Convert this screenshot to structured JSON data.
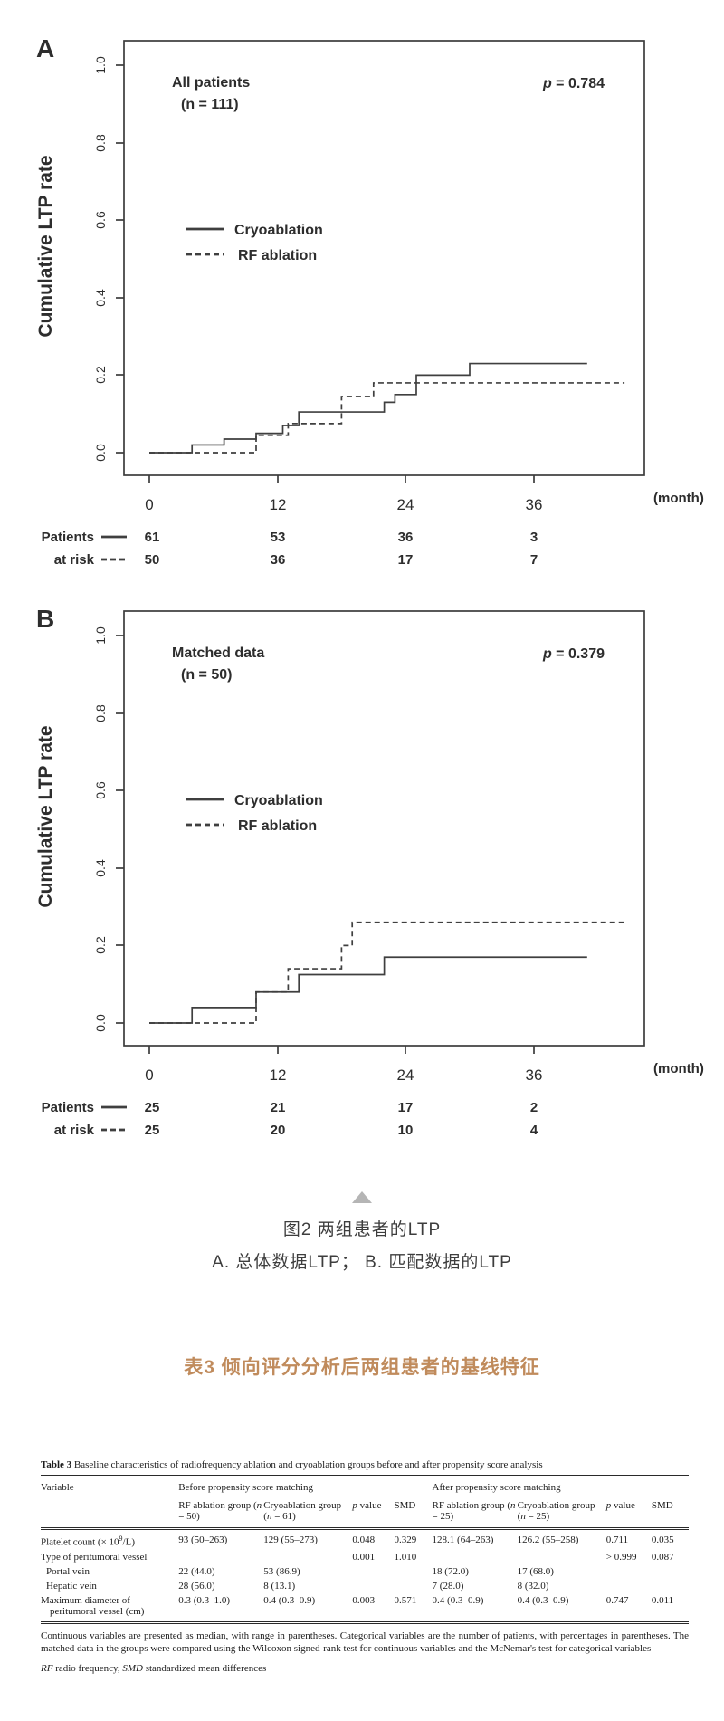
{
  "figure2": {
    "caption_title": "图2 两组患者的LTP",
    "caption_sub": "A. 总体数据LTP； B. 匹配数据的LTP"
  },
  "table_section": {
    "heading": "表3 倾向评分分析后两组患者的基线特征"
  },
  "colors": {
    "heading_accent": "#c08b5c",
    "curve": "#3f3f3f",
    "triangle_gray": "#b5b5b5"
  },
  "chart_data": [
    {
      "type": "line",
      "subtype": "kaplan-meier-step",
      "panel_label": "A",
      "title": "All patients",
      "subtitle": "(n = 111)",
      "p_value_label": {
        "symbol": "p",
        "rest": " = 0.784"
      },
      "ylabel": "Cumulative LTP rate",
      "xlabel": "(month)",
      "xticks": [
        "0",
        "12",
        "24",
        "36"
      ],
      "yticks": [
        "1.0",
        "0.8",
        "0.6",
        "0.4",
        "0.2",
        "0.0"
      ],
      "xlim": [
        0,
        46
      ],
      "ylim": [
        0,
        1.04
      ],
      "grid": false,
      "legend_position": "left-middle",
      "series": [
        {
          "name": "Cryoablation",
          "style": "solid",
          "steps": [
            [
              0,
              0
            ],
            [
              4,
              0.02
            ],
            [
              7,
              0.035
            ],
            [
              10,
              0.05
            ],
            [
              12.5,
              0.07
            ],
            [
              14,
              0.105
            ],
            [
              22,
              0.13
            ],
            [
              23,
              0.15
            ],
            [
              25,
              0.2
            ],
            [
              30,
              0.23
            ],
            [
              41,
              0.23
            ]
          ]
        },
        {
          "name": "RF ablation",
          "style": "dashed",
          "steps": [
            [
              0,
              0
            ],
            [
              10,
              0.045
            ],
            [
              13,
              0.075
            ],
            [
              18,
              0.145
            ],
            [
              21,
              0.18
            ],
            [
              44.5,
              0.18
            ]
          ]
        }
      ],
      "at_risk": {
        "row_label_line1": "Patients",
        "row_label_line2": "at risk",
        "times": [
          0,
          12,
          24,
          36
        ],
        "rows": [
          {
            "series": "Cryoablation",
            "counts": [
              61,
              53,
              36,
              3
            ]
          },
          {
            "series": "RF ablation",
            "counts": [
              50,
              36,
              17,
              7
            ]
          }
        ]
      }
    },
    {
      "type": "line",
      "subtype": "kaplan-meier-step",
      "panel_label": "B",
      "title": "Matched data",
      "subtitle": "(n = 50)",
      "p_value_label": {
        "symbol": "p",
        "rest": " = 0.379"
      },
      "ylabel": "Cumulative LTP rate",
      "xlabel": "(month)",
      "xticks": [
        "0",
        "12",
        "24",
        "36"
      ],
      "yticks": [
        "1.0",
        "0.8",
        "0.6",
        "0.4",
        "0.2",
        "0.0"
      ],
      "xlim": [
        0,
        46
      ],
      "ylim": [
        0,
        1.04
      ],
      "grid": false,
      "legend_position": "left-middle",
      "series": [
        {
          "name": "Cryoablation",
          "style": "solid",
          "steps": [
            [
              0,
              0
            ],
            [
              4,
              0.04
            ],
            [
              10,
              0.08
            ],
            [
              14,
              0.125
            ],
            [
              22,
              0.17
            ],
            [
              41,
              0.17
            ]
          ]
        },
        {
          "name": "RF ablation",
          "style": "dashed",
          "steps": [
            [
              0,
              0
            ],
            [
              10,
              0.08
            ],
            [
              13,
              0.14
            ],
            [
              18,
              0.2
            ],
            [
              19,
              0.26
            ],
            [
              44.5,
              0.26
            ]
          ]
        }
      ],
      "at_risk": {
        "row_label_line1": "Patients",
        "row_label_line2": "at risk",
        "times": [
          0,
          12,
          24,
          36
        ],
        "rows": [
          {
            "series": "Cryoablation",
            "counts": [
              25,
              21,
              17,
              2
            ]
          },
          {
            "series": "RF ablation",
            "counts": [
              25,
              20,
              10,
              4
            ]
          }
        ]
      }
    }
  ],
  "table3": {
    "title": [
      {
        "t": "Table 3",
        "b": 1
      },
      {
        "t": "  Baseline characteristics of radiofrequency ablation and cryoablation groups before and after propensity score analysis"
      }
    ],
    "variable_header": "Variable",
    "span_headers": [
      "Before propensity score matching",
      "After propensity score matching"
    ],
    "col_headers": [
      [
        {
          "t": "RF ablation group ("
        },
        {
          "t": "n",
          "i": 1
        },
        {
          "t": " = 50)"
        }
      ],
      [
        {
          "t": "Cryoablation group ("
        },
        {
          "t": "n",
          "i": 1
        },
        {
          "t": " = 61)"
        }
      ],
      [
        {
          "t": "p",
          "i": 1
        },
        {
          "t": " value"
        }
      ],
      [
        {
          "t": "SMD"
        }
      ],
      [
        {
          "t": "RF ablation group ("
        },
        {
          "t": "n",
          "i": 1
        },
        {
          "t": " = 25)"
        }
      ],
      [
        {
          "t": "Cryoablation group ("
        },
        {
          "t": "n",
          "i": 1
        },
        {
          "t": " = 25)"
        }
      ],
      [
        {
          "t": "p",
          "i": 1
        },
        {
          "t": " value"
        }
      ],
      [
        {
          "t": "SMD"
        }
      ]
    ],
    "rows": [
      {
        "label": [
          {
            "t": "Platelet count (× 10"
          },
          {
            "t": "9",
            "s": 1
          },
          {
            "t": "/L)"
          }
        ],
        "indent": false,
        "cells": [
          "93 (50–263)",
          "129 (55–273)",
          "0.048",
          "0.329",
          "128.1 (64–263)",
          "126.2 (55–258)",
          "0.711",
          "0.035"
        ]
      },
      {
        "label": [
          {
            "t": "Type of peritumoral vessel"
          }
        ],
        "indent": false,
        "cells": [
          "",
          "",
          "0.001",
          "1.010",
          "",
          "",
          "> 0.999",
          "0.087"
        ]
      },
      {
        "label": [
          {
            "t": "Portal vein"
          }
        ],
        "indent": true,
        "cells": [
          "22 (44.0)",
          "53 (86.9)",
          "",
          "",
          "18 (72.0)",
          "17 (68.0)",
          "",
          ""
        ]
      },
      {
        "label": [
          {
            "t": "Hepatic vein"
          }
        ],
        "indent": true,
        "cells": [
          "28 (56.0)",
          "8 (13.1)",
          "",
          "",
          "7 (28.0)",
          "8 (32.0)",
          "",
          ""
        ]
      },
      {
        "label": [
          {
            "t": "Maximum diameter of peritumoral vessel (cm)"
          }
        ],
        "indent": false,
        "cells": [
          "0.3 (0.3–1.0)",
          "0.4 (0.3–0.9)",
          "0.003",
          "0.571",
          "0.4 (0.3–0.9)",
          "0.4 (0.3–0.9)",
          "0.747",
          "0.011"
        ]
      }
    ],
    "footnote1": "Continuous variables are presented as median, with range in parentheses. Categorical variables are the number of patients, with percentages in parentheses. The matched data in the groups were compared using the Wilcoxon signed-rank test for continuous variables and the McNemar's test for categorical variables",
    "footnote2": [
      {
        "t": "RF",
        "i": 1
      },
      {
        "t": " radio frequency, "
      },
      {
        "t": "SMD",
        "i": 1
      },
      {
        "t": " standardized mean differences"
      }
    ]
  }
}
